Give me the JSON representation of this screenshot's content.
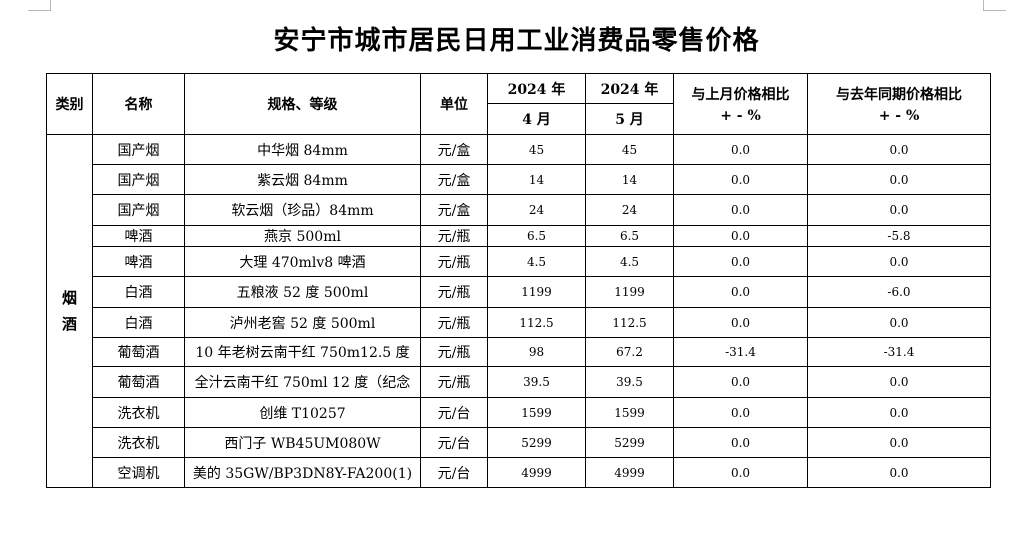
{
  "title": "安宁市城市居民日用工业消费品零售价格",
  "headers": {
    "category": "类别",
    "name": "名称",
    "spec": "规格、等级",
    "unit": "单位",
    "col_apr_year": "2024 年",
    "col_apr_month": "4 月",
    "col_may_year": "2024 年",
    "col_may_month": "5 月",
    "mom_title": "与上月价格相比",
    "mom_unit": "+ - %",
    "yoy_title": "与去年同期价格相比",
    "yoy_unit": "+ - %"
  },
  "category_label": "烟酒",
  "rows": [
    {
      "name": "国产烟",
      "spec": "中华烟 84mm",
      "unit": "元/盒",
      "apr": "45",
      "may": "45",
      "mom": "0.0",
      "yoy": "0.0"
    },
    {
      "name": "国产烟",
      "spec": "紫云烟 84mm",
      "unit": "元/盒",
      "apr": "14",
      "may": "14",
      "mom": "0.0",
      "yoy": "0.0"
    },
    {
      "name": "国产烟",
      "spec": "软云烟（珍品）84mm",
      "unit": "元/盒",
      "apr": "24",
      "may": "24",
      "mom": "0.0",
      "yoy": "0.0"
    },
    {
      "name": "啤酒",
      "spec": "燕京 500ml",
      "unit": "元/瓶",
      "apr": "6.5",
      "may": "6.5",
      "mom": "0.0",
      "yoy": "-5.8"
    },
    {
      "name": "啤酒",
      "spec": "大理 470mlv8 啤酒",
      "unit": "元/瓶",
      "apr": "4.5",
      "may": "4.5",
      "mom": "0.0",
      "yoy": "0.0"
    },
    {
      "name": "白酒",
      "spec": "五粮液 52 度 500ml",
      "unit": "元/瓶",
      "apr": "1199",
      "may": "1199",
      "mom": "0.0",
      "yoy": "-6.0"
    },
    {
      "name": "白酒",
      "spec": "泸州老窖 52 度 500ml",
      "unit": "元/瓶",
      "apr": "112.5",
      "may": "112.5",
      "mom": "0.0",
      "yoy": "0.0"
    },
    {
      "name": "葡萄酒",
      "spec": "10 年老树云南干红  750m12.5 度",
      "unit": "元/瓶",
      "apr": "98",
      "may": "67.2",
      "mom": "-31.4",
      "yoy": "-31.4"
    },
    {
      "name": "葡萄酒",
      "spec": "全汁云南干红 750ml 12 度（纪念",
      "unit": "元/瓶",
      "apr": "39.5",
      "may": "39.5",
      "mom": "0.0",
      "yoy": "0.0"
    },
    {
      "name": "洗衣机",
      "spec": "创维 T10257",
      "unit": "元/台",
      "apr": "1599",
      "may": "1599",
      "mom": "0.0",
      "yoy": "0.0"
    },
    {
      "name": "洗衣机",
      "spec": "西门子 WB45UM080W",
      "unit": "元/台",
      "apr": "5299",
      "may": "5299",
      "mom": "0.0",
      "yoy": "0.0"
    },
    {
      "name": "空调机",
      "spec": "美的 35GW/BP3DN8Y-FA200(1)",
      "unit": "元/台",
      "apr": "4999",
      "may": "4999",
      "mom": "0.0",
      "yoy": "0.0"
    }
  ]
}
